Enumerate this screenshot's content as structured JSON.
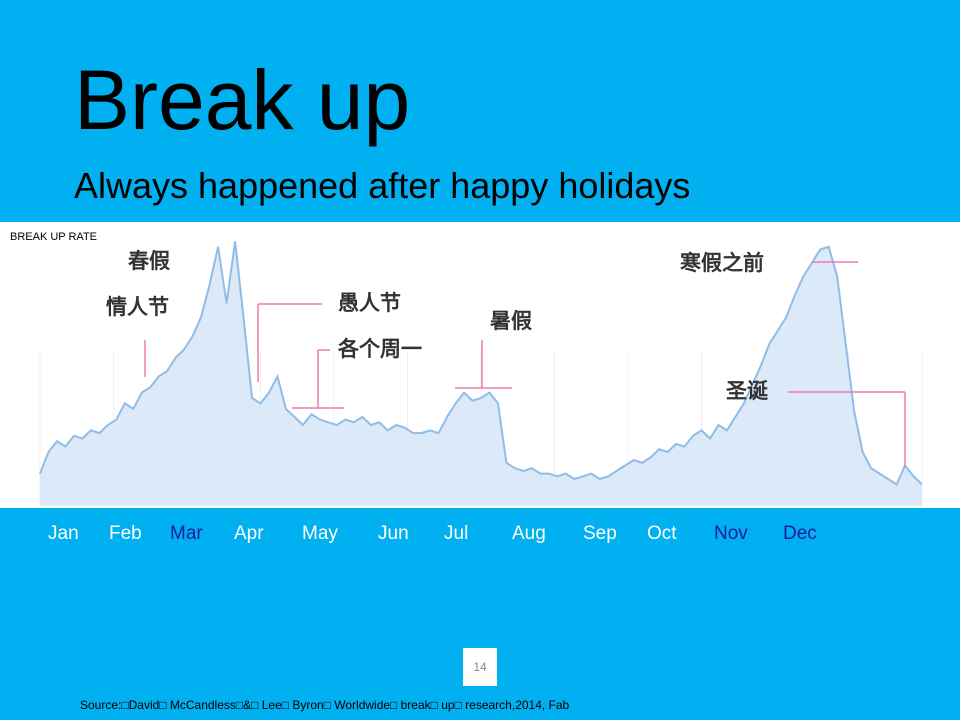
{
  "slide": {
    "title": "Break up",
    "subtitle": "Always happened after happy holidays",
    "page_number": "14",
    "source": "Source:□David□ McCandless□&□ Lee□ Byron□ Worldwide□ break□ up□ research,2014, Fab"
  },
  "colors": {
    "background": "#00b0f0",
    "line": "#8fbde8",
    "fill": "#dce9f8",
    "highlight_month": "#1a1aa8",
    "marker": "#f07ab0"
  },
  "chart_data": {
    "type": "area",
    "ylabel": "BREAK UP RATE",
    "xlabel": "",
    "months": [
      {
        "label": "Jan",
        "highlight": false
      },
      {
        "label": "Feb",
        "highlight": false
      },
      {
        "label": "Mar",
        "highlight": true
      },
      {
        "label": "Apr",
        "highlight": false
      },
      {
        "label": "May",
        "highlight": false
      },
      {
        "label": "Jun",
        "highlight": false
      },
      {
        "label": "Jul",
        "highlight": false
      },
      {
        "label": "Aug",
        "highlight": false
      },
      {
        "label": "Sep",
        "highlight": false
      },
      {
        "label": "Oct",
        "highlight": false
      },
      {
        "label": "Nov",
        "highlight": true
      },
      {
        "label": "Dec",
        "highlight": true
      }
    ],
    "x_range": [
      0,
      52
    ],
    "y_range": [
      0,
      100
    ],
    "series": [
      {
        "x": [
          0,
          0.5,
          1,
          1.5,
          2,
          2.5,
          3,
          3.5,
          4,
          4.5,
          5,
          5.5,
          6,
          6.5,
          7,
          7.5,
          8,
          8.5,
          9,
          9.5,
          10,
          10.5,
          11,
          11.5,
          12,
          12.5,
          13,
          13.5,
          14,
          14.5,
          15,
          15.5,
          16,
          16.5,
          17,
          17.5,
          18,
          18.5,
          19,
          19.5,
          20,
          20.5,
          21,
          21.5,
          22,
          22.5,
          23,
          23.5,
          24,
          24.5,
          25,
          25.5,
          26,
          26.5,
          27,
          27.5,
          28,
          28.5,
          29,
          29.5,
          30,
          30.5,
          31,
          31.5,
          32,
          32.5,
          33,
          33.5,
          34,
          34.5,
          35,
          35.5,
          36,
          36.5,
          37,
          37.5,
          38,
          38.5,
          39,
          39.5,
          40,
          40.5,
          41,
          41.5,
          42,
          42.5,
          43,
          43.5,
          44,
          44.5,
          45,
          45.5,
          46,
          46.5,
          47,
          47.5,
          48,
          48.5,
          49,
          49.5,
          50,
          50.5,
          51,
          51.5,
          52
        ],
        "values": [
          12,
          20,
          24,
          22,
          26,
          25,
          28,
          27,
          30,
          32,
          38,
          36,
          42,
          44,
          48,
          50,
          55,
          58,
          63,
          70,
          82,
          96,
          75,
          98,
          70,
          40,
          38,
          42,
          48,
          36,
          33,
          30,
          34,
          32,
          31,
          30,
          32,
          31,
          33,
          30,
          31,
          28,
          30,
          29,
          27,
          27,
          28,
          27,
          33,
          38,
          42,
          39,
          40,
          42,
          38,
          16,
          14,
          13,
          14,
          12,
          12,
          11,
          12,
          10,
          11,
          12,
          10,
          11,
          13,
          15,
          17,
          16,
          18,
          21,
          20,
          23,
          22,
          26,
          28,
          25,
          30,
          28,
          33,
          38,
          45,
          52,
          60,
          65,
          70,
          78,
          85,
          90,
          95,
          96,
          85,
          60,
          35,
          20,
          14,
          12,
          10,
          8,
          15,
          11,
          8
        ]
      }
    ],
    "annotations": [
      {
        "text": "春假"
      },
      {
        "text": "情人节"
      },
      {
        "text": "愚人节"
      },
      {
        "text": "各个周一"
      },
      {
        "text": "暑假"
      },
      {
        "text": "寒假之前"
      },
      {
        "text": "圣诞"
      }
    ]
  }
}
